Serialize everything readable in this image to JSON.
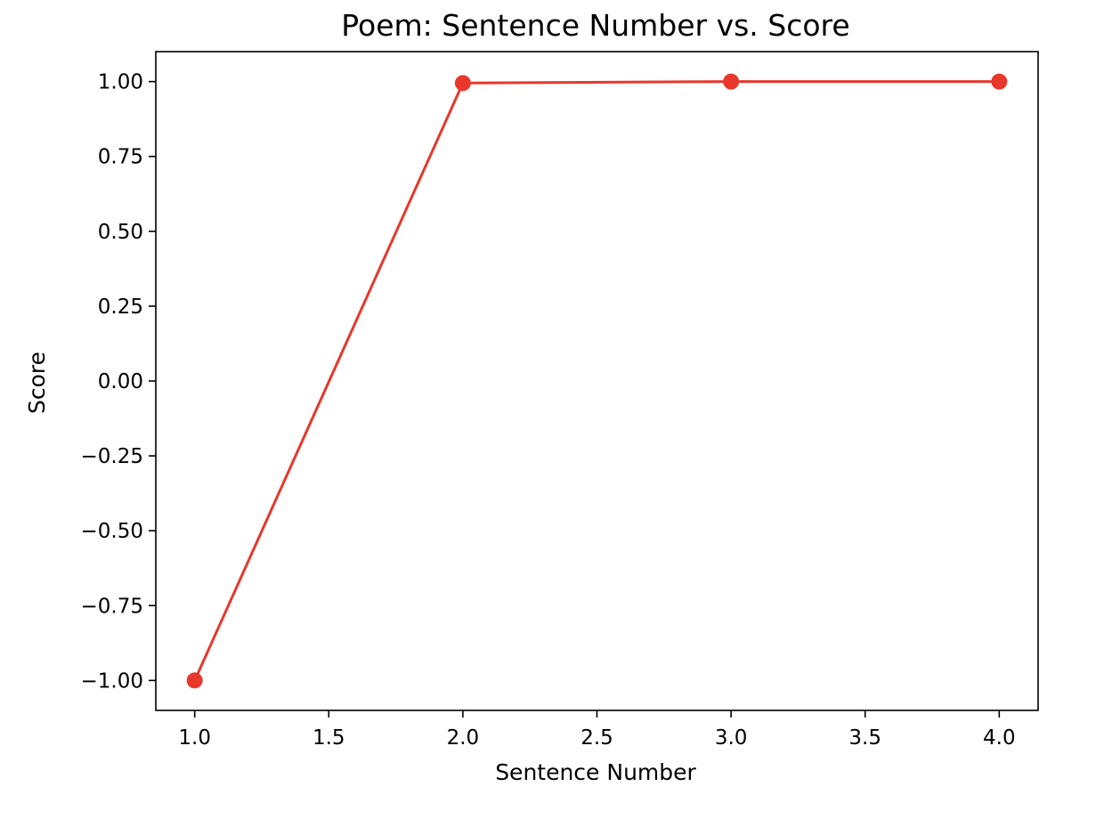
{
  "chart_data": {
    "type": "line",
    "title": "Poem: Sentence Number vs. Score",
    "xlabel": "Sentence Number",
    "ylabel": "Score",
    "x": [
      1,
      2,
      3,
      4
    ],
    "series": [
      {
        "values": [
          -1.0,
          0.995,
          1.0,
          1.0
        ],
        "color": "#e8372b",
        "marker": "circle"
      }
    ],
    "xlim": [
      0.855,
      4.145
    ],
    "ylim": [
      -1.1,
      1.1
    ],
    "xticks": [
      1.0,
      1.5,
      2.0,
      2.5,
      3.0,
      3.5,
      4.0
    ],
    "xtick_labels": [
      "1.0",
      "1.5",
      "2.0",
      "2.5",
      "3.0",
      "3.5",
      "4.0"
    ],
    "yticks": [
      1.0,
      0.75,
      0.5,
      0.25,
      0.0,
      -0.25,
      -0.5,
      -0.75,
      -1.0
    ],
    "ytick_labels": [
      "1.00",
      "0.75",
      "0.50",
      "0.25",
      "0.00",
      "−0.25",
      "−0.50",
      "−0.75",
      "−1.00"
    ],
    "grid": false,
    "legend": false
  }
}
